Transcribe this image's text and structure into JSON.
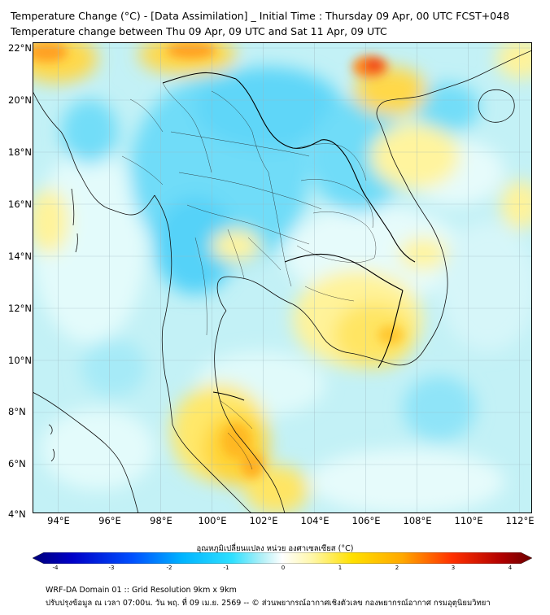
{
  "title_line1": "Temperature Change (°C) - [Data Assimilation] _ Initial Time : Thursday 09 Apr, 00 UTC FCST+048",
  "title_line2": "Temperature change between Thu 09 Apr, 09 UTC and Sat 11 Apr, 09 UTC",
  "map": {
    "lon_range": [
      93,
      112.5
    ],
    "lat_range": [
      4,
      22
    ],
    "lat_labels": [
      "22°N",
      "20°N",
      "18°N",
      "16°N",
      "14°N",
      "12°N",
      "10°N",
      "8°N",
      "6°N",
      "4°N"
    ],
    "lon_labels": [
      "94°E",
      "96°E",
      "98°E",
      "100°E",
      "102°E",
      "104°E",
      "106°E",
      "108°E",
      "110°E",
      "112°E"
    ],
    "background_color": "#b3f0f7"
  },
  "colorbar": {
    "title": "อุณหภูมิเปลี่ยนแปลง หน่วย องศาเซลเซียส (°C)",
    "min": -4,
    "max": 4,
    "tick_labels": [
      "-4",
      "-3",
      "-2",
      "-1",
      "0",
      "1",
      "2",
      "3",
      "4"
    ],
    "colors": [
      "#00007a",
      "#0000c8",
      "#0050ff",
      "#00b4ff",
      "#2ee0ff",
      "#b3f0f7",
      "#ffffff",
      "#fff7a8",
      "#ffe000",
      "#ffa800",
      "#ff3000",
      "#b00000",
      "#6a0000"
    ]
  },
  "footer_line1": "WRF-DA Domain 01 :: Grid Resolution 9km x 9km",
  "footer_line2": "ปรับปรุงข้อมูล ณ เวลา 07:00น. วัน พฤ. ที่ 09 เม.ย. 2569 -- © ส่วนพยากรณ์อากาศเชิงตัวเลข กองพยากรณ์อากาศ กรมอุตุนิยมวิทยา"
}
